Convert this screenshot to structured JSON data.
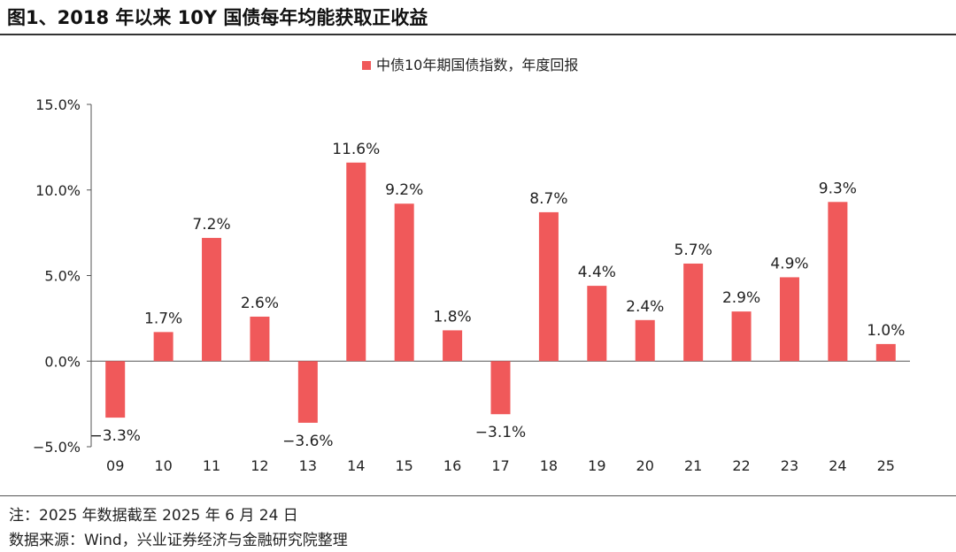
{
  "figure": {
    "title": "图1、2018 年以来 10Y 国债每年均能获取正收益",
    "note": "注：2025 年数据截至 2025 年 6 月 24 日",
    "source": "数据来源：Wind，兴业证券经济与金融研究院整理"
  },
  "chart_data": {
    "type": "bar",
    "title": "",
    "xlabel": "",
    "ylabel": "",
    "categories": [
      "09",
      "10",
      "11",
      "12",
      "13",
      "14",
      "15",
      "16",
      "17",
      "18",
      "19",
      "20",
      "21",
      "22",
      "23",
      "24",
      "25"
    ],
    "series": [
      {
        "name": "中债10年期国债指数，年度回报",
        "values": [
          -3.3,
          1.7,
          7.2,
          2.6,
          -3.6,
          11.6,
          9.2,
          1.8,
          -3.1,
          8.7,
          4.4,
          2.4,
          5.7,
          2.9,
          4.9,
          9.3,
          1.0
        ],
        "data_labels": [
          "−3.3%",
          "1.7%",
          "7.2%",
          "2.6%",
          "−3.6%",
          "11.6%",
          "9.2%",
          "1.8%",
          "−3.1%",
          "8.7%",
          "4.4%",
          "2.4%",
          "5.7%",
          "2.9%",
          "4.9%",
          "9.3%",
          "1.0%"
        ]
      }
    ],
    "yticks": [
      -5,
      0,
      5,
      10,
      15
    ],
    "ytick_labels": [
      "−5.0%",
      "0.0%",
      "5.0%",
      "10.0%",
      "15.0%"
    ],
    "ylim": [
      -5,
      15
    ],
    "grid": false,
    "legend_position": "top-center",
    "colors": {
      "bar": "#F0595A",
      "axis": "#555555",
      "text": "#222222"
    }
  }
}
